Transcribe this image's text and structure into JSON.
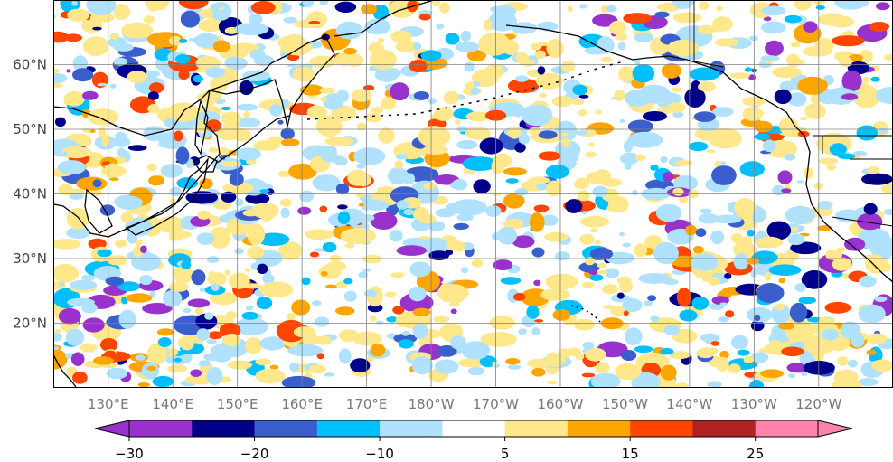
{
  "map": {
    "lat_labels": [
      "60°N",
      "50°N",
      "40°N",
      "30°N",
      "20°N"
    ],
    "lat_values": [
      60,
      50,
      40,
      30,
      20
    ],
    "lon_labels": [
      "130°E",
      "140°E",
      "150°E",
      "160°E",
      "170°E",
      "180°W",
      "170°W",
      "160°W",
      "150°W",
      "140°W",
      "130°W",
      "120°W"
    ],
    "lon_values": [
      130,
      140,
      150,
      160,
      170,
      180,
      190,
      200,
      210,
      220,
      230,
      240
    ],
    "extent": {
      "lon_min": 121.5,
      "lon_max": 251.5,
      "lat_min": 10,
      "lat_max": 70
    }
  },
  "colorbar": {
    "bounds": [
      -30,
      -25,
      -20,
      -15,
      -10,
      -5,
      5,
      10,
      15,
      20,
      25,
      30
    ],
    "colors": [
      "#9932cc",
      "#00008b",
      "#3a5fcd",
      "#00bfff",
      "#b0e2ff",
      "#ffffff",
      "#ffe78c",
      "#ffa500",
      "#ff4500",
      "#b22222",
      "#ff82ab"
    ],
    "extend": "both",
    "tick_labels": [
      "−30",
      "−20",
      "−10",
      "5",
      "15",
      "25"
    ],
    "tick_values": [
      -30,
      -20,
      -10,
      5,
      15,
      25
    ]
  }
}
